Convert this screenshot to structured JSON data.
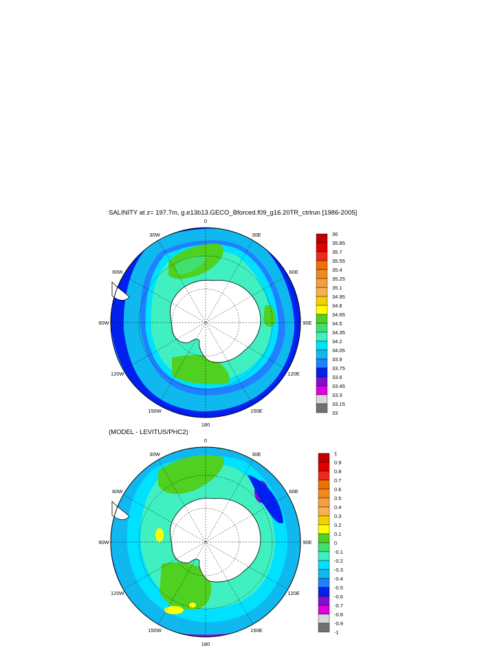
{
  "figure": {
    "title": "SALINITY at z= 197.7m, g.e13b13.GECO_Bforced.f09_g16.20TR_ctrlrun [1986-2005]",
    "subtitle": "(MODEL - LEVITUS/PHC2)"
  },
  "chart_data": [
    {
      "type": "heatmap",
      "projection": "south-polar-stereographic",
      "longitude_labels": [
        "0",
        "30E",
        "60E",
        "90E",
        "120E",
        "150E",
        "180",
        "150W",
        "120W",
        "90W",
        "60W",
        "30W"
      ],
      "colorbar": {
        "labels": [
          "36",
          "35.85",
          "35.7",
          "35.55",
          "35.4",
          "35.25",
          "35.1",
          "34.95",
          "34.8",
          "34.65",
          "34.5",
          "34.35",
          "34.2",
          "34.05",
          "33.9",
          "33.75",
          "33.6",
          "33.45",
          "33.3",
          "33.15",
          "33"
        ],
        "colors": [
          "#c00000",
          "#e00000",
          "#ee2a1e",
          "#f07000",
          "#f08a1e",
          "#f4a040",
          "#f8b050",
          "#f4d000",
          "#ffff00",
          "#50d020",
          "#40e070",
          "#40f0c0",
          "#00e0ff",
          "#10b8f0",
          "#2080ff",
          "#0020f0",
          "#8010d0",
          "#e000e0",
          "#d8d8d8",
          "#707070"
        ]
      }
    },
    {
      "type": "heatmap",
      "projection": "south-polar-stereographic",
      "longitude_labels": [
        "0",
        "30E",
        "60E",
        "90E",
        "120E",
        "150E",
        "180",
        "150W",
        "120W",
        "90W",
        "60W",
        "30W"
      ],
      "colorbar": {
        "labels": [
          "1",
          "0.9",
          "0.8",
          "0.7",
          "0.6",
          "0.5",
          "0.4",
          "0.3",
          "0.2",
          "0.1",
          "0",
          "-0.1",
          "-0.2",
          "-0.3",
          "-0.4",
          "-0.5",
          "-0.6",
          "-0.7",
          "-0.8",
          "-0.9",
          "-1"
        ],
        "colors": [
          "#c00000",
          "#e00000",
          "#ee2a1e",
          "#f07000",
          "#f08a1e",
          "#f4a040",
          "#f8b050",
          "#f4d000",
          "#ffff00",
          "#50d020",
          "#40e070",
          "#40f0c0",
          "#00e0ff",
          "#10b8f0",
          "#2080ff",
          "#0020f0",
          "#8010d0",
          "#e000e0",
          "#d8d8d8",
          "#707070"
        ]
      }
    }
  ]
}
